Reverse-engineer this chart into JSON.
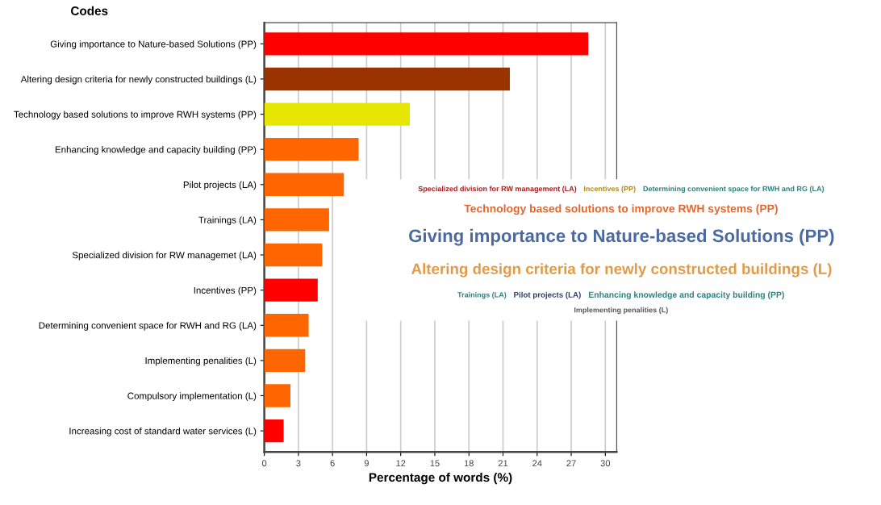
{
  "chart_data": {
    "type": "bar",
    "orientation": "horizontal",
    "title": "Codes",
    "xlabel": "Percentage of words (%)",
    "categories": [
      "Giving importance to Nature-based Solutions (PP)",
      "Altering design criteria for newly constructed buildings (L)",
      "Technology based solutions to improve RWH systems (PP)",
      "Enhancing knowledge and capacity building (PP)",
      "Pilot projects (LA)",
      "Trainings (LA)",
      "Specialized division for RW managemet (LA)",
      "Incentives (PP)",
      "Determining convenient space for RWH and RG (LA)",
      "Implementing penalities (L)",
      "Compulsory implementation (L)",
      "Increasing cost of standard water services (L)"
    ],
    "values": [
      28.5,
      21.6,
      12.8,
      8.3,
      7.0,
      5.7,
      5.1,
      4.7,
      3.9,
      3.6,
      2.3,
      1.7
    ],
    "colors": [
      "#ff0000",
      "#993300",
      "#e6e600",
      "#ff6600",
      "#ff6600",
      "#ff6600",
      "#ff6600",
      "#ff0000",
      "#ff6600",
      "#ff6600",
      "#ff6600",
      "#ff0000"
    ],
    "xlim": [
      0,
      31
    ],
    "xticks": [
      0,
      3,
      6,
      9,
      12,
      15,
      18,
      21,
      24,
      27,
      30
    ],
    "grid": "x",
    "annotations": [
      "Specialized division for RW management (LA)",
      "Incentives (PP)",
      "Determining convenient space for RWH and RG (LA)",
      "Technology based solutions to improve RWH systems (PP)",
      "Giving importance to Nature-based Solutions (PP)",
      "Altering design criteria for newly constructed buildings (L)",
      "Trainings (LA)",
      "Pilot projects (LA)",
      "Enhancing knowledge and capacity building (PP)",
      "Implementing penalities (L)"
    ]
  }
}
